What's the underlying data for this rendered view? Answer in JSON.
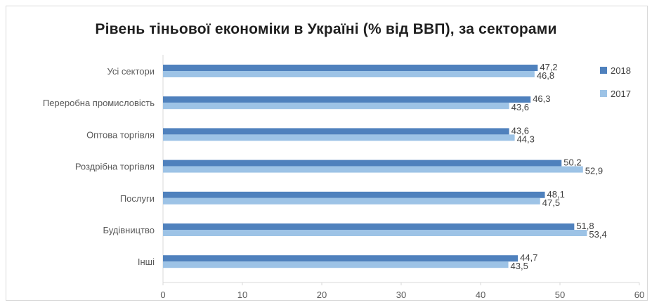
{
  "chart_data": {
    "type": "bar",
    "orientation": "horizontal",
    "title": "Рівень тіньової економіки в Україні (% від ВВП), за секторами",
    "categories": [
      "Усі сектори",
      "Переробна промисловість",
      "Оптова торгівля",
      "Роздрібна торгівля",
      "Послуги",
      "Будівництво",
      "Інші"
    ],
    "series": [
      {
        "name": "2018",
        "color": "#4f81bd",
        "values": [
          47.2,
          46.3,
          43.6,
          50.2,
          48.1,
          51.8,
          44.7
        ],
        "labels": [
          "47,2",
          "46,3",
          "43,6",
          "50,2",
          "48,1",
          "51,8",
          "44,7"
        ]
      },
      {
        "name": "2017",
        "color": "#9dc3e6",
        "values": [
          46.8,
          43.6,
          44.3,
          52.9,
          47.5,
          53.4,
          43.5
        ],
        "labels": [
          "46,8",
          "43,6",
          "44,3",
          "52,9",
          "47,5",
          "53,4",
          "43,5"
        ]
      }
    ],
    "xlim": [
      0,
      60
    ],
    "x_ticks": [
      0,
      10,
      20,
      30,
      40,
      50,
      60
    ],
    "x_tick_labels": [
      "0",
      "10",
      "20",
      "30",
      "40",
      "50",
      "60"
    ],
    "xlabel": "",
    "ylabel": "",
    "grid": false,
    "legend_position": "right"
  }
}
